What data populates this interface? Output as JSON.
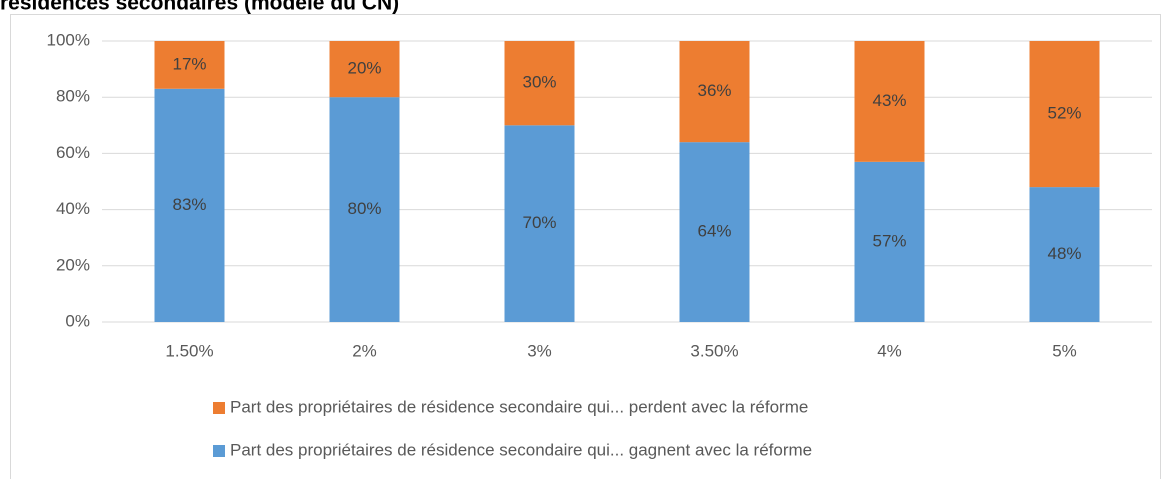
{
  "chart_data": {
    "type": "stacked_bar",
    "title": "résidences secondaires (modèle du CN)",
    "categories": [
      "1.50%",
      "2%",
      "3%",
      "3.50%",
      "4%",
      "5%"
    ],
    "series": [
      {
        "name": "Part des propriétaires de résidence secondaire qui... gagnent avec la réforme",
        "color": "#5b9bd5",
        "values": [
          83,
          80,
          70,
          64,
          57,
          48
        ],
        "value_labels": [
          "83%",
          "80%",
          "70%",
          "64%",
          "57%",
          "48%"
        ]
      },
      {
        "name": "Part des propriétaires de résidence secondaire qui... perdent avec la réforme",
        "color": "#ed7d31",
        "values": [
          17,
          20,
          30,
          36,
          43,
          52
        ],
        "value_labels": [
          "17%",
          "20%",
          "30%",
          "36%",
          "43%",
          "52%"
        ]
      }
    ],
    "ylim": [
      0,
      100
    ],
    "yticks": [
      {
        "value": 0,
        "label": "0%"
      },
      {
        "value": 20,
        "label": "20%"
      },
      {
        "value": 40,
        "label": "40%"
      },
      {
        "value": 60,
        "label": "60%"
      },
      {
        "value": 80,
        "label": "80%"
      },
      {
        "value": 100,
        "label": "100%"
      }
    ],
    "grid": true
  }
}
